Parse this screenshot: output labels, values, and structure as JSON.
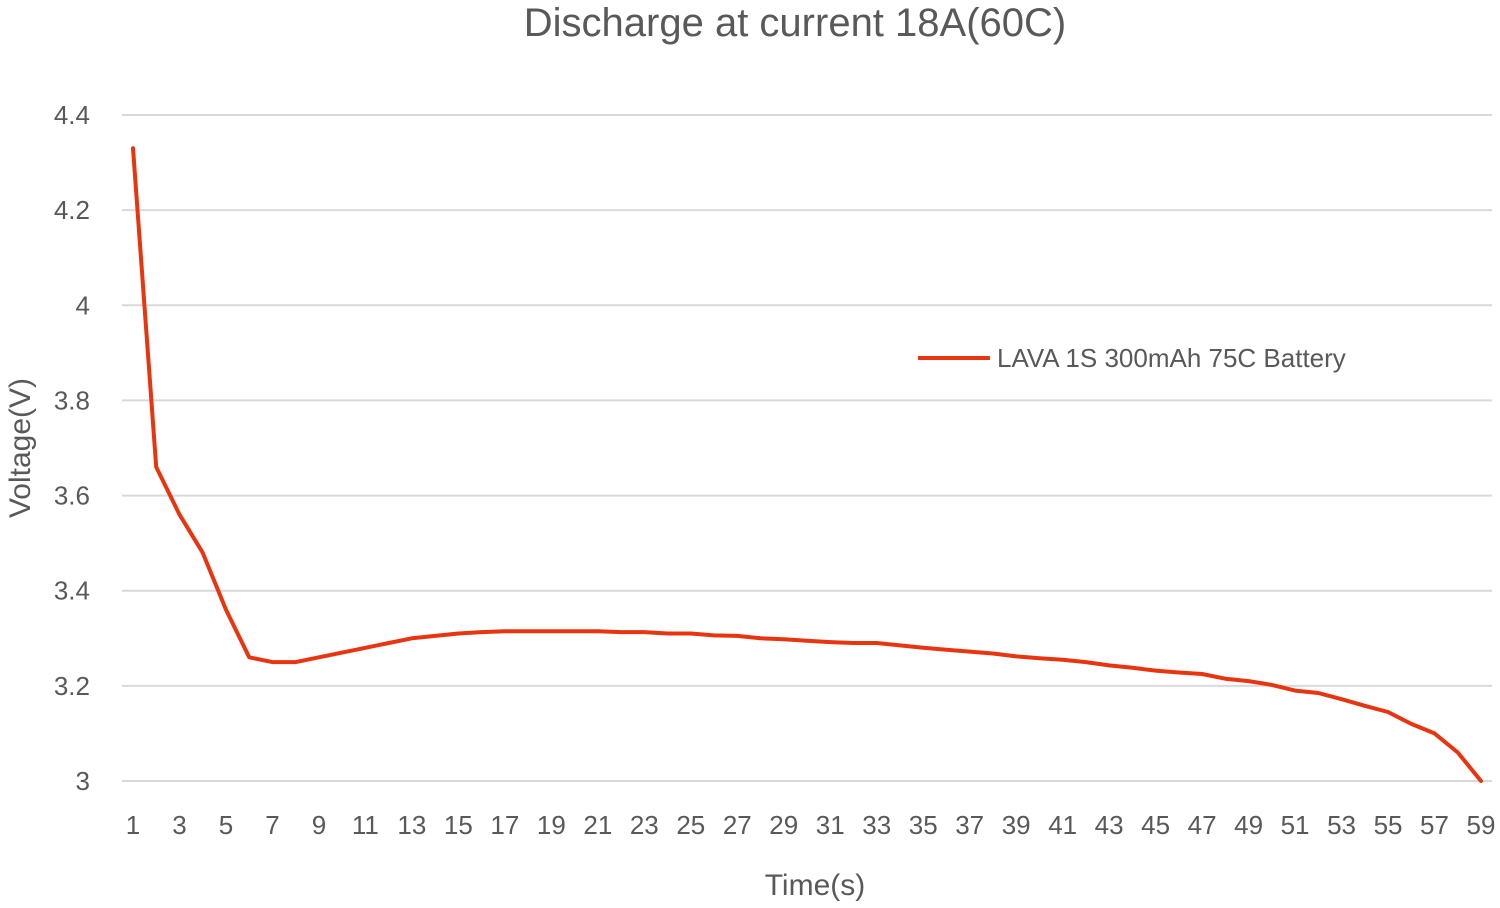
{
  "chart_data": {
    "type": "line",
    "title": "Discharge at current 18A(60C)",
    "xlabel": "Time(s)",
    "ylabel": "Voltage(V)",
    "ylim": [
      3,
      4.4
    ],
    "yticks": [
      "3",
      "3.2",
      "3.4",
      "3.6",
      "3.8",
      "4",
      "4.2",
      "4.4"
    ],
    "xticks": [
      "1",
      "3",
      "5",
      "7",
      "9",
      "11",
      "13",
      "15",
      "17",
      "19",
      "21",
      "23",
      "25",
      "27",
      "29",
      "31",
      "33",
      "35",
      "37",
      "39",
      "41",
      "43",
      "45",
      "47",
      "49",
      "51",
      "53",
      "55",
      "57",
      "59"
    ],
    "grid": true,
    "legend_position": "right",
    "series_color": "#e8340f",
    "series": [
      {
        "name": "LAVA 1S 300mAh 75C Battery",
        "x": [
          1,
          2,
          3,
          4,
          5,
          6,
          7,
          8,
          9,
          10,
          11,
          12,
          13,
          14,
          15,
          16,
          17,
          18,
          19,
          20,
          21,
          22,
          23,
          24,
          25,
          26,
          27,
          28,
          29,
          30,
          31,
          32,
          33,
          34,
          35,
          36,
          37,
          38,
          39,
          40,
          41,
          42,
          43,
          44,
          45,
          46,
          47,
          48,
          49,
          50,
          51,
          52,
          53,
          54,
          55,
          56,
          57,
          58,
          59
        ],
        "values": [
          4.33,
          3.66,
          3.56,
          3.48,
          3.36,
          3.26,
          3.25,
          3.25,
          3.26,
          3.27,
          3.28,
          3.29,
          3.3,
          3.305,
          3.31,
          3.313,
          3.315,
          3.315,
          3.315,
          3.315,
          3.315,
          3.313,
          3.313,
          3.31,
          3.31,
          3.306,
          3.305,
          3.3,
          3.298,
          3.295,
          3.292,
          3.29,
          3.29,
          3.285,
          3.28,
          3.276,
          3.272,
          3.268,
          3.262,
          3.258,
          3.255,
          3.25,
          3.243,
          3.238,
          3.232,
          3.228,
          3.225,
          3.215,
          3.21,
          3.202,
          3.19,
          3.185,
          3.172,
          3.158,
          3.145,
          3.12,
          3.1,
          3.06,
          3.0
        ]
      }
    ]
  }
}
